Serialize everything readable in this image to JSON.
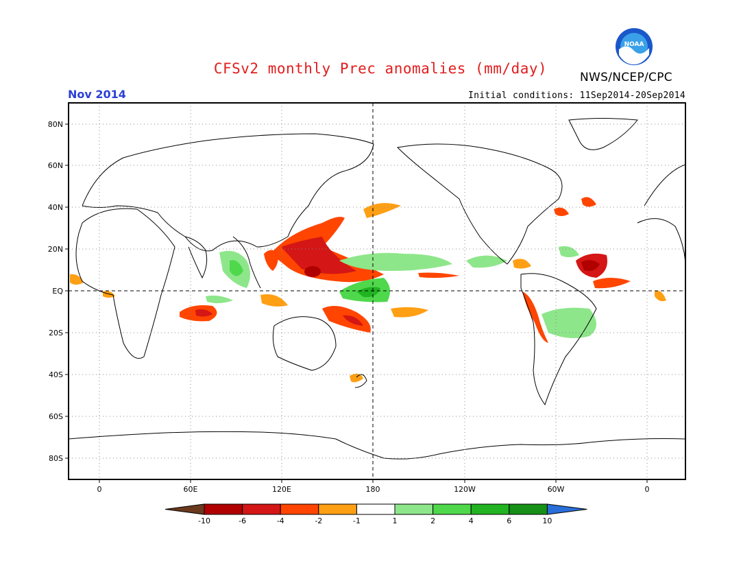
{
  "header": {
    "title": "CFSv2 monthly Prec anomalies (mm/day)",
    "agency": "NWS/NCEP/CPC",
    "logo_text": "NOAA",
    "valid_month": "Nov 2014",
    "initial_conditions": "Initial conditions: 11Sep2014-20Sep2014"
  },
  "map": {
    "lat_labels": [
      "80N",
      "60N",
      "40N",
      "20N",
      "EQ",
      "20S",
      "40S",
      "60S",
      "80S"
    ],
    "lon_labels": [
      "0",
      "60E",
      "120E",
      "180",
      "120W",
      "60W",
      "0"
    ]
  },
  "colorbar": {
    "units": "mm/day",
    "labels": [
      "-10",
      "-6",
      "-4",
      "-2",
      "-1",
      "1",
      "2",
      "4",
      "6",
      "10"
    ],
    "colors": [
      "#6b3a1e",
      "#b00000",
      "#d41616",
      "#ff4500",
      "#ff9f14",
      "#ffffff",
      "#8ee68a",
      "#4fd84c",
      "#21b321",
      "#179017",
      "#2a6fd8"
    ]
  },
  "colors": {
    "title": "#e11d1d",
    "month": "#2b3fd8"
  }
}
